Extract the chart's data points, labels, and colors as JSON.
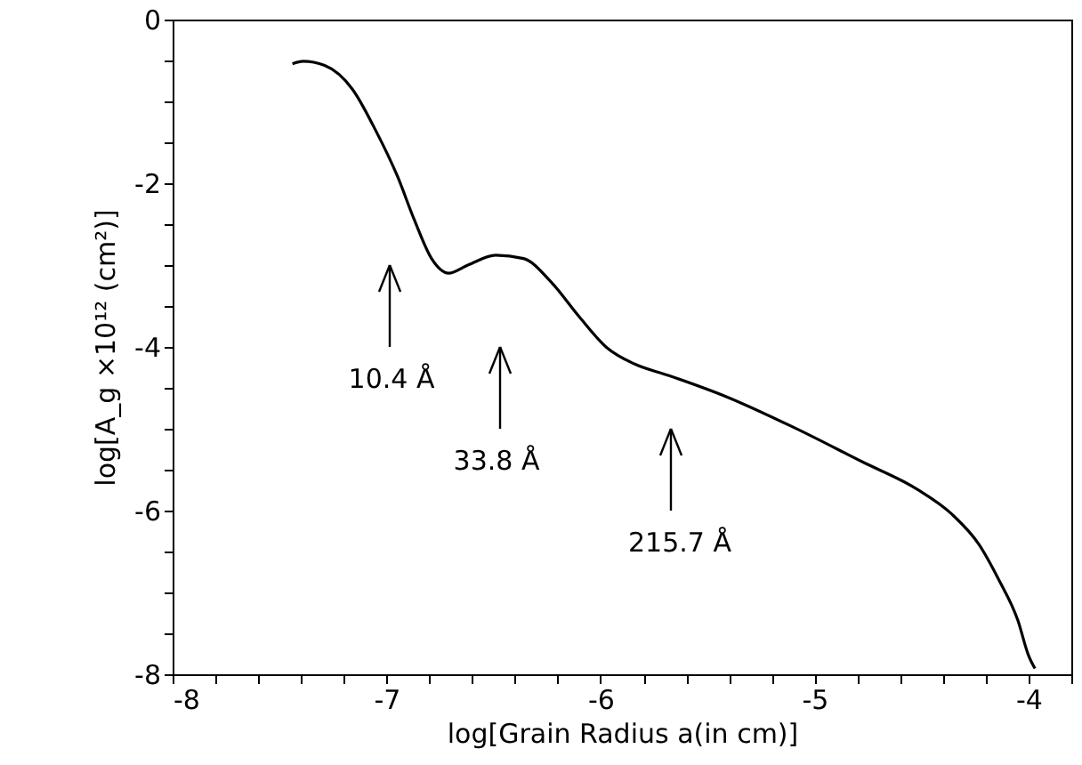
{
  "chart_data": {
    "type": "line",
    "xlabel": "log[Grain Radius a(in cm)]",
    "ylabel": "log[A_g ×10¹² (cm²)]",
    "xlim": [
      -8,
      -3.8
    ],
    "ylim": [
      -8,
      0
    ],
    "xticks": [
      -8,
      {
        "value": -7.8,
        "label": null
      },
      {
        "value": -7.6,
        "label": null
      },
      {
        "value": -7.4,
        "label": null
      },
      {
        "value": -7.2,
        "label": null
      },
      -7,
      {
        "value": -6.8,
        "label": null
      },
      {
        "value": -6.6,
        "label": null
      },
      {
        "value": -6.4,
        "label": null
      },
      {
        "value": -6.2,
        "label": null
      },
      -6,
      {
        "value": -5.8,
        "label": null
      },
      {
        "value": -5.6,
        "label": null
      },
      {
        "value": -5.4,
        "label": null
      },
      {
        "value": -5.2,
        "label": null
      },
      -5,
      {
        "value": -4.8,
        "label": null
      },
      {
        "value": -4.6,
        "label": null
      },
      {
        "value": -4.4,
        "label": null
      },
      {
        "value": -4.2,
        "label": null
      },
      -4,
      {
        "value": -3.8,
        "label": null
      }
    ],
    "yticks": [
      0,
      {
        "value": -0.5,
        "label": null
      },
      {
        "value": -1,
        "label": null
      },
      {
        "value": -1.5,
        "label": null
      },
      -2,
      {
        "value": -2.5,
        "label": null
      },
      {
        "value": -3,
        "label": null
      },
      {
        "value": -3.5,
        "label": null
      },
      -4,
      {
        "value": -4.5,
        "label": null
      },
      {
        "value": -5,
        "label": null
      },
      {
        "value": -5.5,
        "label": null
      },
      -6,
      {
        "value": -6.5,
        "label": null
      },
      {
        "value": -7,
        "label": null
      },
      {
        "value": -7.5,
        "label": null
      },
      -8
    ],
    "grid": false,
    "series": [
      {
        "color": "#000000",
        "x": [
          -7.44,
          -7.39,
          -7.29,
          -7.16,
          -7.05,
          -6.95,
          -6.87,
          -6.79,
          -6.71,
          -6.62,
          -6.49,
          -6.36,
          -6.23,
          -6.1,
          -5.97,
          -5.84,
          -5.68,
          -5.42,
          -5.1,
          -4.78,
          -4.52,
          -4.36,
          -4.23,
          -4.14,
          -4.05,
          -4.0,
          -3.97
        ],
        "values": [
          -0.54,
          -0.51,
          -0.56,
          -0.85,
          -1.36,
          -1.91,
          -2.45,
          -2.92,
          -3.1,
          -3.0,
          -2.88,
          -2.92,
          -3.21,
          -3.63,
          -4.01,
          -4.21,
          -4.35,
          -4.6,
          -4.98,
          -5.4,
          -5.74,
          -6.04,
          -6.42,
          -6.84,
          -7.34,
          -7.77,
          -7.93
        ]
      }
    ],
    "annotations": [
      "10.4 Å",
      "33.8 Å",
      "215.7 Å"
    ]
  }
}
